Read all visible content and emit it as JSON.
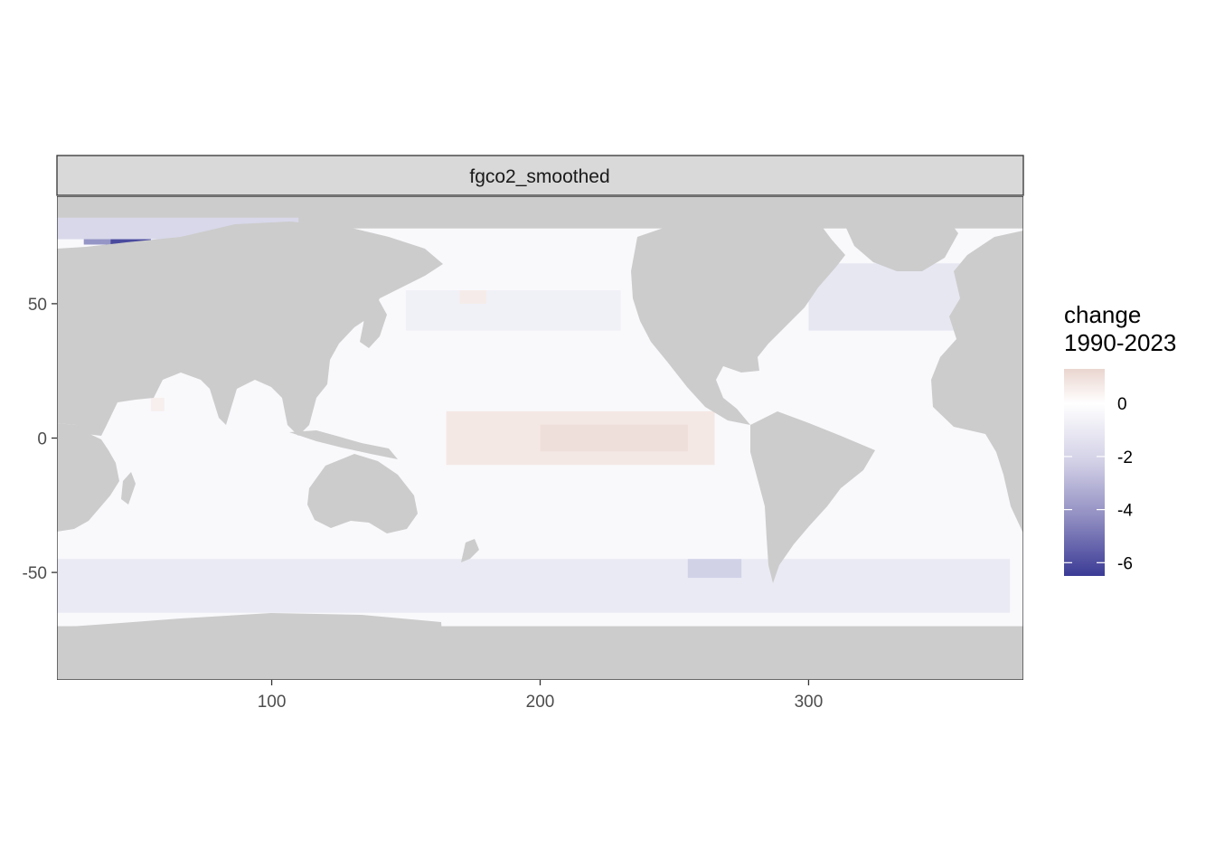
{
  "panel": {
    "strip_label": "fgco2_smoothed"
  },
  "x_axis": {
    "ticks": [
      {
        "value": 100,
        "label": "100"
      },
      {
        "value": 200,
        "label": "200"
      },
      {
        "value": 300,
        "label": "300"
      }
    ],
    "range": [
      20,
      380
    ]
  },
  "y_axis": {
    "ticks": [
      {
        "value": 50,
        "label": "50"
      },
      {
        "value": 0,
        "label": "0"
      },
      {
        "value": -50,
        "label": "-50"
      }
    ],
    "range": [
      -90,
      90
    ]
  },
  "legend": {
    "title_line1": "change",
    "title_line2": "1990-2023",
    "range": [
      -6.5,
      1.3
    ],
    "breaks": [
      {
        "value": 0,
        "label": "0"
      },
      {
        "value": -2,
        "label": "-2"
      },
      {
        "value": -4,
        "label": "-4"
      },
      {
        "value": -6,
        "label": "-6"
      }
    ]
  },
  "colors": {
    "land": "#cccccc",
    "negative_end": "#3b3b96",
    "midpoint": "#ffffff",
    "positive_end": "#ead5cf",
    "strip_fill": "#d9d9d9",
    "panel_border": "#333333"
  },
  "chart_data": {
    "type": "heatmap",
    "variable": "change 1990-2023",
    "regions": [
      {
        "lon": [
          165,
          265
        ],
        "lat": [
          -10,
          10
        ],
        "value": 0.7
      },
      {
        "lon": [
          200,
          255
        ],
        "lat": [
          -5,
          5
        ],
        "value": 1.0
      },
      {
        "lon": [
          30,
          55
        ],
        "lat": [
          72,
          80
        ],
        "value": -3.5
      },
      {
        "lon": [
          40,
          55
        ],
        "lat": [
          68,
          74
        ],
        "value": -6.0
      },
      {
        "lon": [
          20,
          110
        ],
        "lat": [
          74,
          82
        ],
        "value": -1.3
      },
      {
        "lon": [
          300,
          375
        ],
        "lat": [
          40,
          65
        ],
        "value": -0.8
      },
      {
        "lon": [
          150,
          230
        ],
        "lat": [
          40,
          55
        ],
        "value": -0.5
      },
      {
        "lon": [
          20,
          375
        ],
        "lat": [
          -65,
          -45
        ],
        "value": -0.7
      },
      {
        "lon": [
          255,
          275
        ],
        "lat": [
          -52,
          -45
        ],
        "value": -1.5
      },
      {
        "lon": [
          170,
          180
        ],
        "lat": [
          50,
          55
        ],
        "value": 0.6
      },
      {
        "lon": [
          55,
          60
        ],
        "lat": [
          10,
          15
        ],
        "value": 0.5
      }
    ],
    "default_ocean_value": -0.2
  }
}
